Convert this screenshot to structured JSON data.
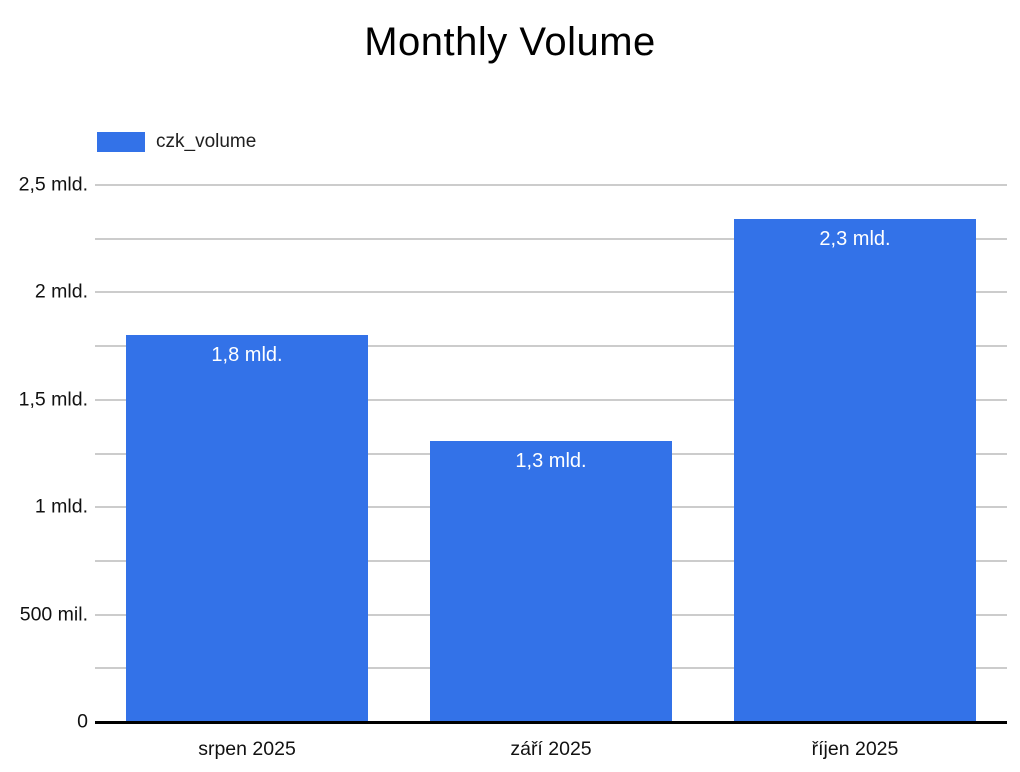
{
  "chart_data": {
    "type": "bar",
    "title": "Monthly Volume",
    "categories": [
      "srpen 2025",
      "září 2025",
      "říjen 2025"
    ],
    "series": [
      {
        "name": "czk_volume",
        "values": [
          1800000000,
          1310000000,
          2340000000
        ],
        "labels": [
          "1,8 mld.",
          "1,3 mld.",
          "2,3 mld."
        ],
        "color": "#3372E8"
      }
    ],
    "ylim": [
      0,
      2500000000
    ],
    "y_ticks": [
      {
        "value": 0,
        "label": "0"
      },
      {
        "value": 500000000,
        "label": "500 mil."
      },
      {
        "value": 1000000000,
        "label": "1 mld."
      },
      {
        "value": 1500000000,
        "label": "1,5 mld."
      },
      {
        "value": 2000000000,
        "label": "2 mld."
      },
      {
        "value": 2500000000,
        "label": "2,5 mld."
      }
    ],
    "minor_grid_step": 250000000,
    "grid": true,
    "legend_position": "top-left",
    "colors": {
      "bar": "#3372E8",
      "gridline": "#cccccc",
      "baseline": "#000000",
      "value_label": "#ffffff",
      "text": "#111111",
      "background": "#ffffff"
    }
  }
}
